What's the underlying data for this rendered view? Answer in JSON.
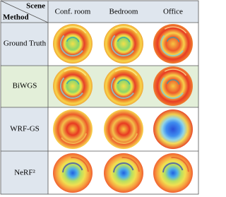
{
  "header": {
    "scene": "Scene",
    "method": "Method",
    "columns": [
      "Conf. room",
      "Bedroom",
      "Office"
    ]
  },
  "rows": [
    {
      "method": "Ground Truth"
    },
    {
      "method": "BiWGS"
    },
    {
      "method": "WRF-GS"
    },
    {
      "method": "NeRF²"
    }
  ]
}
